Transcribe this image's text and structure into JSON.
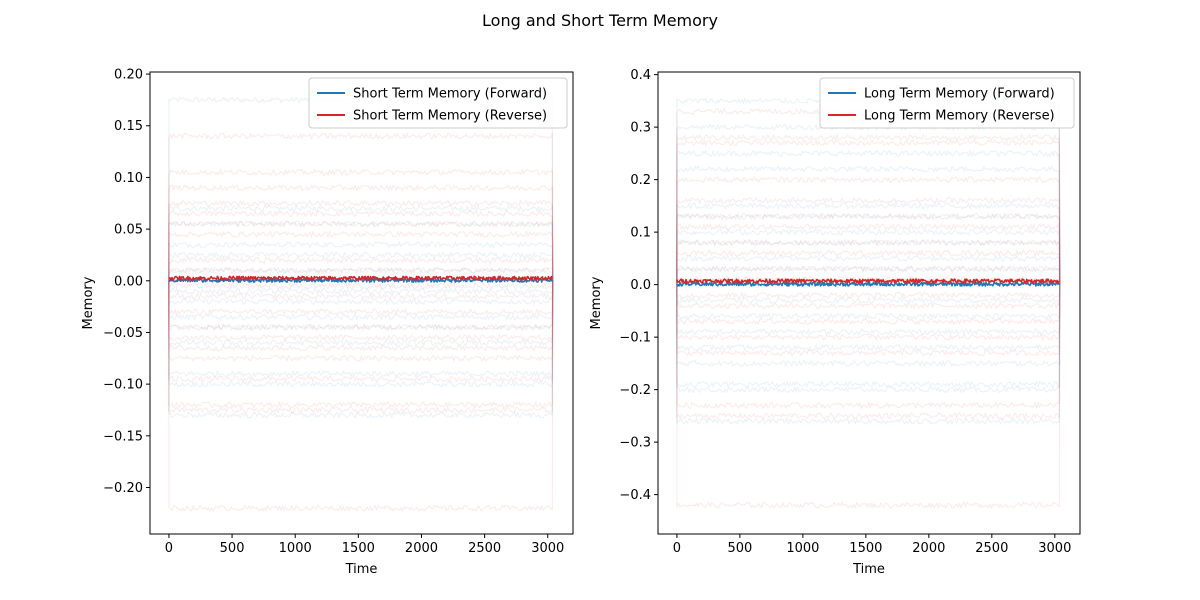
{
  "figure": {
    "suptitle": "Long and Short Term Memory"
  },
  "chart_data": [
    {
      "type": "line",
      "title": "",
      "xlabel": "Time",
      "ylabel": "Memory",
      "xlim": [
        -150,
        3200
      ],
      "ylim": [
        -0.245,
        0.202
      ],
      "xticks": [
        0,
        500,
        1000,
        1500,
        2000,
        2500,
        3000
      ],
      "xtick_labels": [
        "0",
        "500",
        "1000",
        "1500",
        "2000",
        "2500",
        "3000"
      ],
      "yticks": [
        -0.2,
        -0.15,
        -0.1,
        -0.05,
        0.0,
        0.05,
        0.1,
        0.15,
        0.2
      ],
      "ytick_labels": [
        "−0.20",
        "−0.15",
        "−0.10",
        "−0.05",
        "0.00",
        "0.05",
        "0.10",
        "0.15",
        "0.20"
      ],
      "legend_position": "top-right",
      "x_range": [
        0,
        3040
      ],
      "series": [
        {
          "name": "Short Term Memory (Forward)",
          "color": "#1f77b4",
          "mean": 0.0005
        },
        {
          "name": "Short Term Memory (Reverse)",
          "color": "#d62728",
          "mean": 0.0025
        }
      ],
      "background_blue_levels": [
        0.175,
        0.07,
        0.055,
        0.035,
        0.025,
        0.01,
        -0.01,
        -0.02,
        -0.035,
        -0.045,
        -0.06,
        -0.09,
        -0.1,
        -0.13
      ],
      "background_red_levels": [
        0.14,
        0.105,
        0.09,
        0.075,
        0.065,
        0.055,
        0.045,
        0.02,
        0.01,
        -0.005,
        -0.015,
        -0.03,
        -0.045,
        -0.055,
        -0.065,
        -0.075,
        -0.095,
        -0.12,
        -0.125,
        -0.22
      ]
    },
    {
      "type": "line",
      "title": "",
      "xlabel": "Time",
      "ylabel": "Memory",
      "xlim": [
        -150,
        3200
      ],
      "ylim": [
        -0.475,
        0.405
      ],
      "xticks": [
        0,
        500,
        1000,
        1500,
        2000,
        2500,
        3000
      ],
      "xtick_labels": [
        "0",
        "500",
        "1000",
        "1500",
        "2000",
        "2500",
        "3000"
      ],
      "yticks": [
        -0.4,
        -0.3,
        -0.2,
        -0.1,
        0.0,
        0.1,
        0.2,
        0.3,
        0.4
      ],
      "ytick_labels": [
        "−0.4",
        "−0.3",
        "−0.2",
        "−0.1",
        "0.0",
        "0.1",
        "0.2",
        "0.3",
        "0.4"
      ],
      "legend_position": "top-right",
      "x_range": [
        0,
        3040
      ],
      "series": [
        {
          "name": "Long Term Memory (Forward)",
          "color": "#1f77b4",
          "mean": 0.001
        },
        {
          "name": "Long Term Memory (Reverse)",
          "color": "#d62728",
          "mean": 0.007
        }
      ],
      "background_blue_levels": [
        0.35,
        0.3,
        0.25,
        0.22,
        0.15,
        0.13,
        0.1,
        0.08,
        0.05,
        0.03,
        -0.03,
        -0.06,
        -0.09,
        -0.12,
        -0.15,
        -0.19,
        -0.2,
        -0.26
      ],
      "background_red_levels": [
        0.33,
        0.28,
        0.27,
        0.2,
        0.16,
        0.13,
        0.11,
        0.08,
        0.06,
        0.03,
        0.01,
        -0.02,
        -0.04,
        -0.07,
        -0.1,
        -0.13,
        -0.23,
        -0.25,
        -0.42
      ]
    }
  ]
}
